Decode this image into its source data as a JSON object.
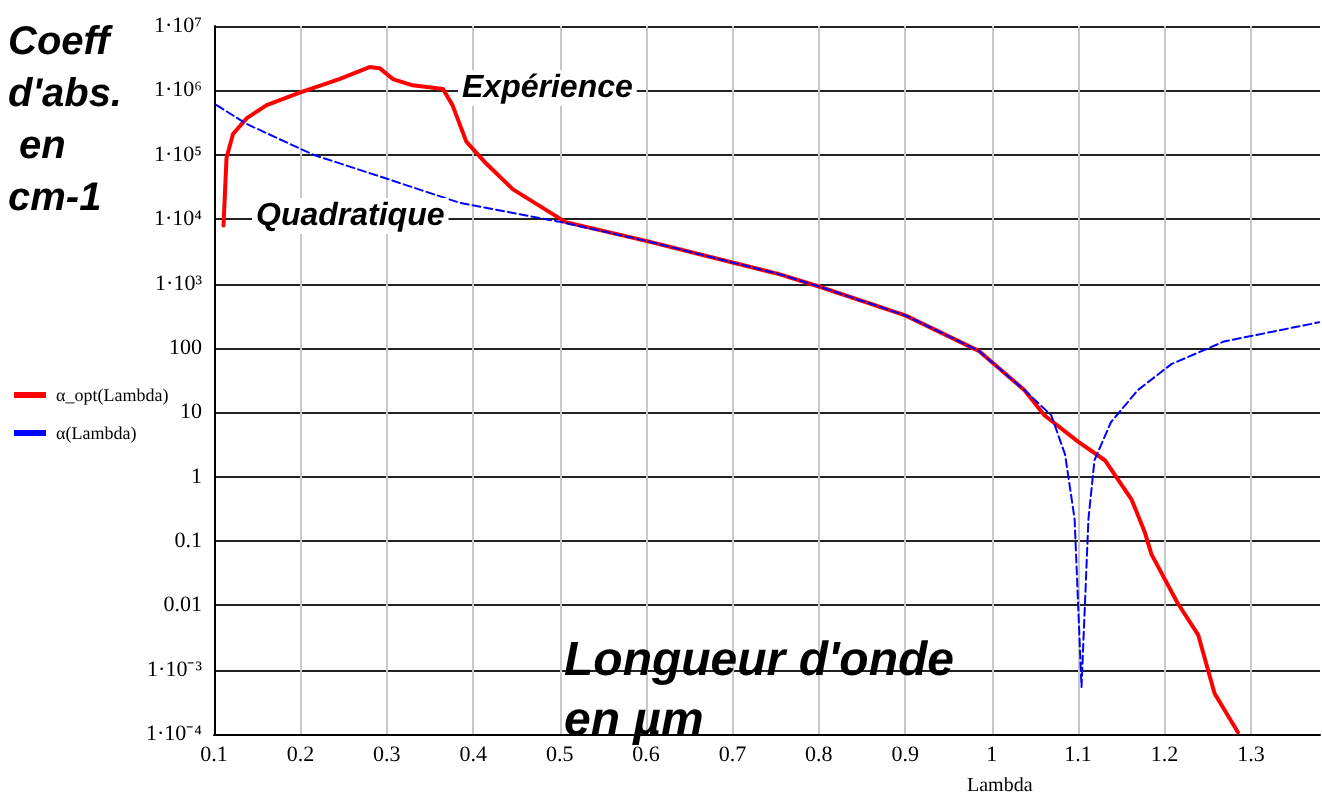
{
  "chart_data": {
    "type": "line",
    "ylabel": "Coeff d'abs. en cm-1",
    "xlabel": "Lambda",
    "annotations": [
      "Expérience",
      "Quadratique",
      "Longueur d'onde en µm"
    ],
    "xlim": [
      0.1,
      1.38
    ],
    "xticks": [
      0.1,
      0.2,
      0.3,
      0.4,
      0.5,
      0.6,
      0.7,
      0.8,
      0.9,
      1,
      1.1,
      1.2,
      1.3
    ],
    "ylim": [
      0.0001,
      10000000
    ],
    "yticks": [
      {
        "value": 0.0001,
        "label": "1·10⁻⁴"
      },
      {
        "value": 0.001,
        "label": "1·10⁻³"
      },
      0.01,
      0.1,
      1,
      10,
      100,
      {
        "value": 1000,
        "label": "1·10³"
      },
      {
        "value": 10000,
        "label": "1·10⁴"
      },
      {
        "value": 100000,
        "label": "1·10⁵"
      },
      {
        "value": 1000000,
        "label": "1·10⁶"
      },
      {
        "value": 10000000,
        "label": "1·10⁷"
      }
    ],
    "log": "y",
    "grid": true,
    "legend": "left",
    "marker": "none",
    "series": [
      {
        "name": "α_opt(Lambda)",
        "color": "#ff0000",
        "line_style": "solid",
        "x": [
          0.111,
          0.1145,
          0.122,
          0.138,
          0.161,
          0.2,
          0.245,
          0.28,
          0.292,
          0.307,
          0.33,
          0.365,
          0.376,
          0.392,
          0.415,
          0.446,
          0.507,
          0.6,
          0.754,
          0.8,
          0.9,
          0.985,
          1.038,
          1.061,
          1.1,
          1.131,
          1.162,
          1.177,
          1.185,
          1.215,
          1.239,
          1.258,
          1.285
        ],
        "values": [
          8000,
          90000,
          210000,
          370000,
          590000,
          930000,
          1500000,
          2300000,
          2200000,
          1500000,
          1200000,
          1050000,
          590000,
          160000,
          73000,
          29000,
          9000,
          4600,
          1400,
          900,
          320,
          90,
          22,
          9,
          3.5,
          1.8,
          0.44,
          0.14,
          0.062,
          0.011,
          0.0035,
          0.00043,
          0.000107
        ]
      },
      {
        "name": "α(Lambda)",
        "color": "#0000ff",
        "line_style": "dashed",
        "x": [
          0.103,
          0.138,
          0.215,
          0.292,
          0.384,
          0.5,
          0.6,
          0.754,
          0.8,
          0.9,
          0.985,
          1.038,
          1.069,
          1.085,
          1.096,
          1.104,
          1.112,
          1.119,
          1.138,
          1.169,
          1.208,
          1.269,
          1.379
        ],
        "values": [
          590000,
          300000,
          100000,
          46000,
          18000,
          9100,
          4600,
          1400,
          900,
          320,
          90,
          22,
          9,
          2.2,
          0.22,
          0.00054,
          0.22,
          1.8,
          7,
          22,
          56,
          126,
          250
        ]
      }
    ]
  }
}
